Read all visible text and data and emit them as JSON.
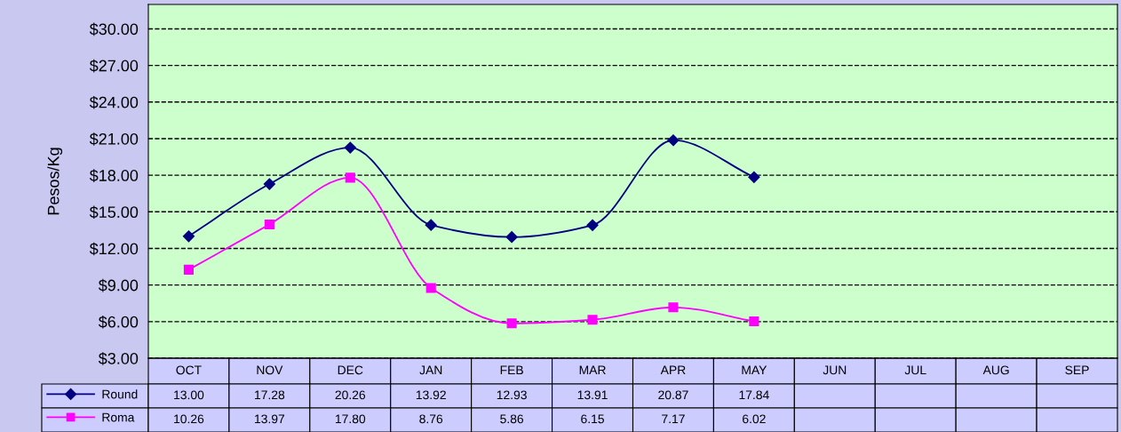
{
  "chart_data": {
    "type": "line",
    "ylabel": "Pesos/Kg",
    "categories": [
      "OCT",
      "NOV",
      "DEC",
      "JAN",
      "FEB",
      "MAR",
      "APR",
      "MAY",
      "JUN",
      "JUL",
      "AUG",
      "SEP"
    ],
    "series": [
      {
        "name": "Round",
        "color": "#000080",
        "marker": "diamond",
        "values": [
          13.0,
          17.28,
          20.26,
          13.92,
          12.93,
          13.91,
          20.87,
          17.84,
          null,
          null,
          null,
          null
        ],
        "value_labels": [
          "13.00",
          "17.28",
          "20.26",
          "13.92",
          "12.93",
          "13.91",
          "20.87",
          "17.84",
          null,
          null,
          null,
          null
        ]
      },
      {
        "name": "Roma",
        "color": "#ff00ff",
        "marker": "square",
        "values": [
          10.26,
          13.97,
          17.8,
          8.76,
          5.86,
          6.15,
          7.17,
          6.02,
          null,
          null,
          null,
          null
        ],
        "value_labels": [
          "10.26",
          "13.97",
          "17.80",
          "8.76",
          "5.86",
          "6.15",
          "7.17",
          "6.02",
          null,
          null,
          null,
          null
        ]
      }
    ],
    "ylim": [
      3,
      32
    ],
    "yticks": [
      {
        "value": 3,
        "label": "$3.00"
      },
      {
        "value": 6,
        "label": "$6.00"
      },
      {
        "value": 9,
        "label": "$9.00"
      },
      {
        "value": 12,
        "label": "$12.00"
      },
      {
        "value": 15,
        "label": "$15.00"
      },
      {
        "value": 18,
        "label": "$18.00"
      },
      {
        "value": 21,
        "label": "$21.00"
      },
      {
        "value": 24,
        "label": "$24.00"
      },
      {
        "value": 27,
        "label": "$27.00"
      },
      {
        "value": 30,
        "label": "$30.00"
      }
    ],
    "grid": "y",
    "legend": "bottom",
    "line_style": "solid"
  }
}
